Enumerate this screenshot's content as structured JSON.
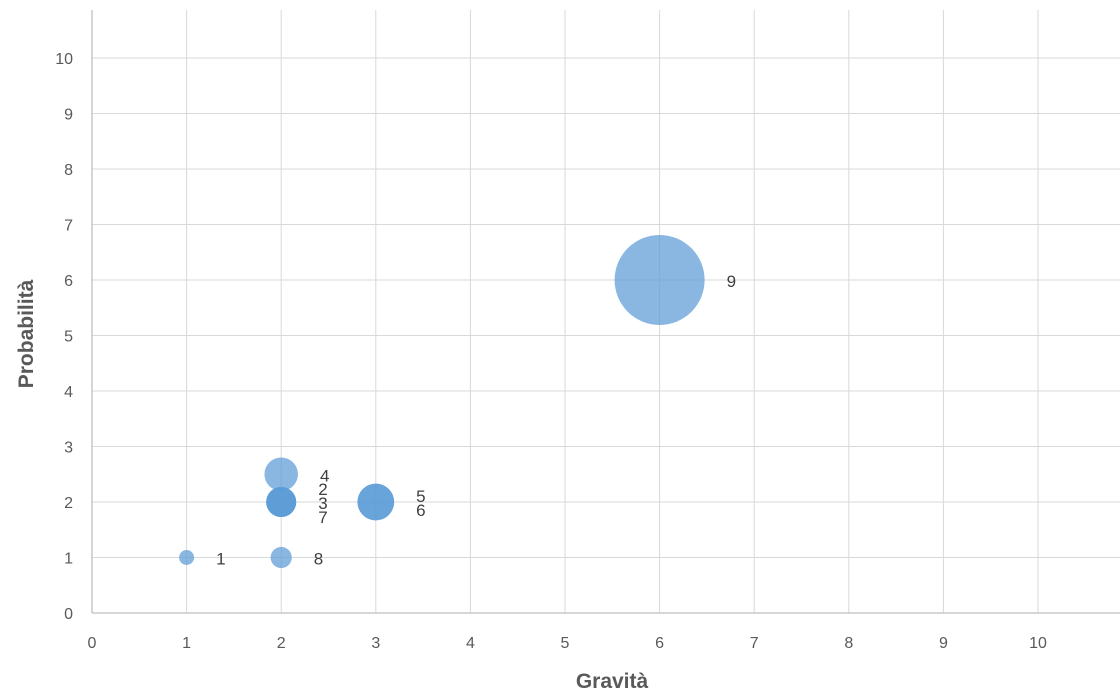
{
  "colors": {
    "bubble": "#5B9BD5",
    "grid": "#D9D9D9",
    "axis": "#BFBFBF",
    "tick_text": "#595959",
    "label_text": "#404040"
  },
  "chart_data": {
    "type": "scatter",
    "subtype": "bubble",
    "title": "",
    "xlabel": "Gravità",
    "ylabel": "Probabilità",
    "xlim": [
      0,
      10
    ],
    "ylim": [
      0,
      10
    ],
    "xticks": [
      0,
      1,
      2,
      3,
      4,
      5,
      6,
      7,
      8,
      9,
      10
    ],
    "yticks": [
      0,
      1,
      2,
      3,
      4,
      5,
      6,
      7,
      8,
      9,
      10
    ],
    "grid": true,
    "legend": "none",
    "points": [
      {
        "label": "1",
        "x": 1,
        "y": 1,
        "size": 1
      },
      {
        "label": "2",
        "x": 2,
        "y": 2,
        "size": 4
      },
      {
        "label": "3",
        "x": 2,
        "y": 2,
        "size": 4
      },
      {
        "label": "4",
        "x": 2,
        "y": 2.5,
        "size": 5
      },
      {
        "label": "5",
        "x": 3,
        "y": 2,
        "size": 6
      },
      {
        "label": "6",
        "x": 3,
        "y": 2,
        "size": 6
      },
      {
        "label": "7",
        "x": 2,
        "y": 2,
        "size": 4
      },
      {
        "label": "8",
        "x": 2,
        "y": 1,
        "size": 2
      },
      {
        "label": "9",
        "x": 6,
        "y": 6,
        "size": 36
      }
    ]
  }
}
